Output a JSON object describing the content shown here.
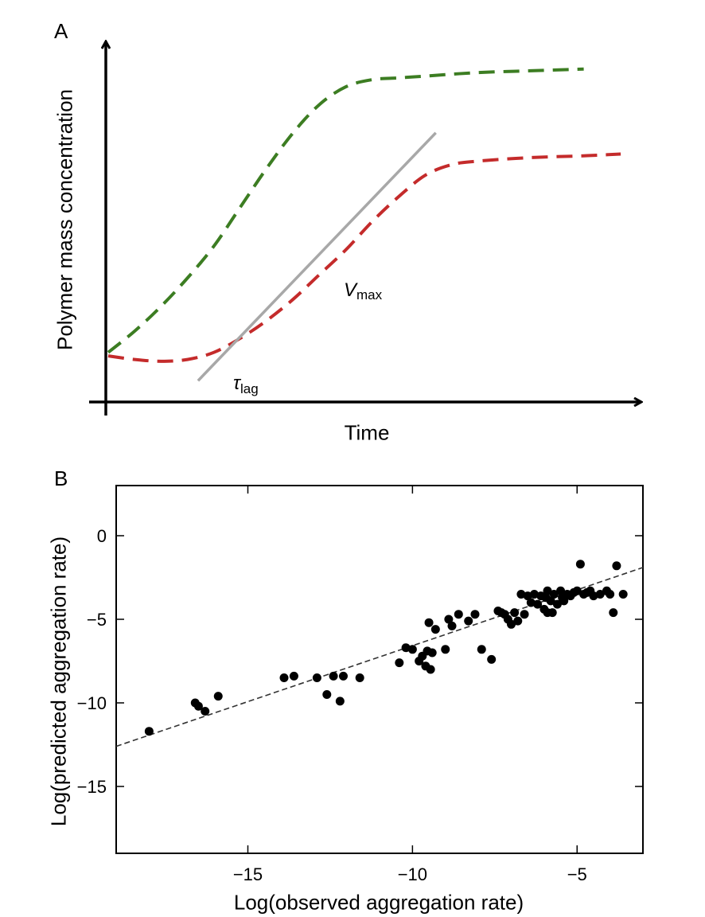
{
  "panels": {
    "a": {
      "label": "A"
    },
    "b": {
      "label": "B"
    }
  },
  "chart_data": [
    {
      "type": "line",
      "panel": "A",
      "xlabel": "Time",
      "ylabel": "Polymer mass concentration",
      "axes_ticks": false,
      "annotations": [
        {
          "symbol": "V",
          "subscript": "max"
        },
        {
          "symbol": "τ",
          "subscript": "lag"
        }
      ],
      "series": [
        {
          "color": "#3c7d22",
          "style": "dashed",
          "x": [
            0.0,
            0.05,
            0.1,
            0.15,
            0.2,
            0.25,
            0.3,
            0.35,
            0.4,
            0.45,
            0.5,
            0.55,
            0.6,
            0.7,
            0.8,
            0.9
          ],
          "y": [
            0.14,
            0.2,
            0.27,
            0.35,
            0.44,
            0.55,
            0.66,
            0.76,
            0.84,
            0.89,
            0.91,
            0.915,
            0.92,
            0.93,
            0.935,
            0.94
          ]
        },
        {
          "color": "#c42b2b",
          "style": "dashed",
          "x": [
            0.0,
            0.05,
            0.1,
            0.15,
            0.2,
            0.25,
            0.3,
            0.35,
            0.4,
            0.45,
            0.5,
            0.55,
            0.6,
            0.65,
            0.7,
            0.8,
            0.9,
            0.97
          ],
          "y": [
            0.13,
            0.12,
            0.115,
            0.12,
            0.14,
            0.18,
            0.23,
            0.29,
            0.36,
            0.43,
            0.51,
            0.58,
            0.64,
            0.67,
            0.68,
            0.69,
            0.695,
            0.7
          ]
        },
        {
          "color": "#a8a8a8",
          "style": "solid",
          "x": [
            0.17,
            0.62
          ],
          "y": [
            0.06,
            0.76
          ]
        }
      ]
    },
    {
      "type": "scatter",
      "panel": "B",
      "xlabel": "Log(observed aggregation rate)",
      "ylabel": "Log(predicted aggregation rate)",
      "xlim": [
        -19,
        -3
      ],
      "ylim": [
        -19,
        3
      ],
      "xticks": [
        -15,
        -10,
        -5
      ],
      "yticks": [
        0,
        -5,
        -10,
        -15
      ],
      "xtick_labels": [
        "−15",
        "−10",
        "−5"
      ],
      "ytick_labels": [
        "0",
        "−5",
        "−10",
        "−15"
      ],
      "fit_line": {
        "x": [
          -19,
          -3
        ],
        "y": [
          -12.6,
          -1.9
        ],
        "style": "dashed"
      },
      "points": [
        [
          -18.0,
          -11.7
        ],
        [
          -16.6,
          -10.0
        ],
        [
          -16.5,
          -10.2
        ],
        [
          -16.3,
          -10.5
        ],
        [
          -15.9,
          -9.6
        ],
        [
          -13.9,
          -8.5
        ],
        [
          -13.6,
          -8.4
        ],
        [
          -12.9,
          -8.5
        ],
        [
          -12.6,
          -9.5
        ],
        [
          -12.4,
          -8.4
        ],
        [
          -12.2,
          -9.9
        ],
        [
          -12.1,
          -8.4
        ],
        [
          -11.6,
          -8.5
        ],
        [
          -10.4,
          -7.6
        ],
        [
          -10.2,
          -6.7
        ],
        [
          -10.0,
          -6.8
        ],
        [
          -9.8,
          -7.5
        ],
        [
          -9.7,
          -7.2
        ],
        [
          -9.6,
          -7.8
        ],
        [
          -9.55,
          -6.9
        ],
        [
          -9.5,
          -5.2
        ],
        [
          -9.45,
          -8.0
        ],
        [
          -9.4,
          -7.0
        ],
        [
          -9.3,
          -5.6
        ],
        [
          -9.0,
          -6.8
        ],
        [
          -8.9,
          -5.0
        ],
        [
          -8.8,
          -5.4
        ],
        [
          -8.6,
          -4.7
        ],
        [
          -8.3,
          -5.1
        ],
        [
          -8.1,
          -4.7
        ],
        [
          -7.9,
          -6.8
        ],
        [
          -7.6,
          -7.4
        ],
        [
          -7.4,
          -4.5
        ],
        [
          -7.2,
          -4.7
        ],
        [
          -7.1,
          -5.0
        ],
        [
          -7.0,
          -5.3
        ],
        [
          -6.9,
          -4.6
        ],
        [
          -6.8,
          -5.1
        ],
        [
          -6.7,
          -3.5
        ],
        [
          -6.6,
          -4.7
        ],
        [
          -6.5,
          -3.6
        ],
        [
          -6.3,
          -3.5
        ],
        [
          -6.2,
          -4.1
        ],
        [
          -6.1,
          -3.6
        ],
        [
          -6.0,
          -4.4
        ],
        [
          -5.95,
          -3.7
        ],
        [
          -5.9,
          -4.6
        ],
        [
          -5.8,
          -3.9
        ],
        [
          -5.75,
          -4.6
        ],
        [
          -5.7,
          -3.5
        ],
        [
          -5.6,
          -4.1
        ],
        [
          -5.5,
          -3.3
        ],
        [
          -5.45,
          -3.7
        ],
        [
          -5.4,
          -3.9
        ],
        [
          -5.3,
          -3.5
        ],
        [
          -5.2,
          -3.6
        ],
        [
          -5.1,
          -3.4
        ],
        [
          -5.0,
          -3.3
        ],
        [
          -4.9,
          -1.7
        ],
        [
          -4.8,
          -3.5
        ],
        [
          -4.7,
          -3.4
        ],
        [
          -4.6,
          -3.3
        ],
        [
          -4.5,
          -3.6
        ],
        [
          -4.3,
          -3.5
        ],
        [
          -4.1,
          -3.3
        ],
        [
          -3.9,
          -4.6
        ],
        [
          -3.8,
          -1.8
        ],
        [
          -3.6,
          -3.5
        ],
        [
          -5.9,
          -3.3
        ],
        [
          -6.4,
          -4.0
        ],
        [
          -7.3,
          -4.6
        ],
        [
          -4.0,
          -3.5
        ]
      ]
    }
  ]
}
